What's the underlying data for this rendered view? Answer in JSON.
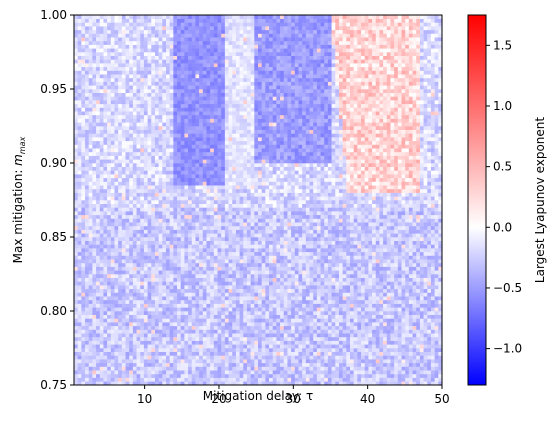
{
  "chart_data": {
    "type": "heatmap",
    "title": "",
    "xlabel": "Mitigation delay: τ",
    "ylabel": "Max mitigation: ",
    "ylabel_symbol": "m",
    "ylabel_sub": "max",
    "xlim": [
      0.5,
      50
    ],
    "ylim": [
      0.75,
      1.0
    ],
    "x_ticks": [
      10,
      20,
      30,
      40,
      50
    ],
    "y_ticks": [
      0.75,
      0.8,
      0.85,
      0.9,
      0.95,
      1.0
    ],
    "x_tick_labels": [
      "10",
      "20",
      "30",
      "40",
      "50"
    ],
    "y_tick_labels": [
      "0.75",
      "0.80",
      "0.85",
      "0.90",
      "0.95",
      "1.00"
    ],
    "grid": false,
    "colormap": "bwr",
    "colorbar": {
      "label": "Largest Lyapunov exponent",
      "range": [
        -1.3,
        1.75
      ],
      "ticks": [
        -1.0,
        -0.5,
        0.0,
        0.5,
        1.0,
        1.5
      ],
      "tick_labels": [
        "−1.0",
        "−0.5",
        "0.0",
        "0.5",
        "1.0",
        "1.5"
      ]
    },
    "regions": [
      {
        "description": "background",
        "value_range": [
          -0.45,
          -0.1
        ]
      },
      {
        "description": "dark blue band",
        "x_range": [
          14,
          21
        ],
        "y_range": [
          0.9,
          1.0
        ],
        "value_approx": -0.55
      },
      {
        "description": "dark blue band",
        "x_range": [
          25,
          35
        ],
        "y_range": [
          0.9,
          1.0
        ],
        "value_approx": -0.5
      },
      {
        "description": "light region",
        "x_range": [
          21,
          25
        ],
        "y_range": [
          0.88,
          1.0
        ],
        "value_approx": -0.15
      },
      {
        "description": "red region",
        "x_range": [
          36,
          47
        ],
        "y_range": [
          0.88,
          1.0
        ],
        "value_approx": 0.35
      }
    ]
  }
}
